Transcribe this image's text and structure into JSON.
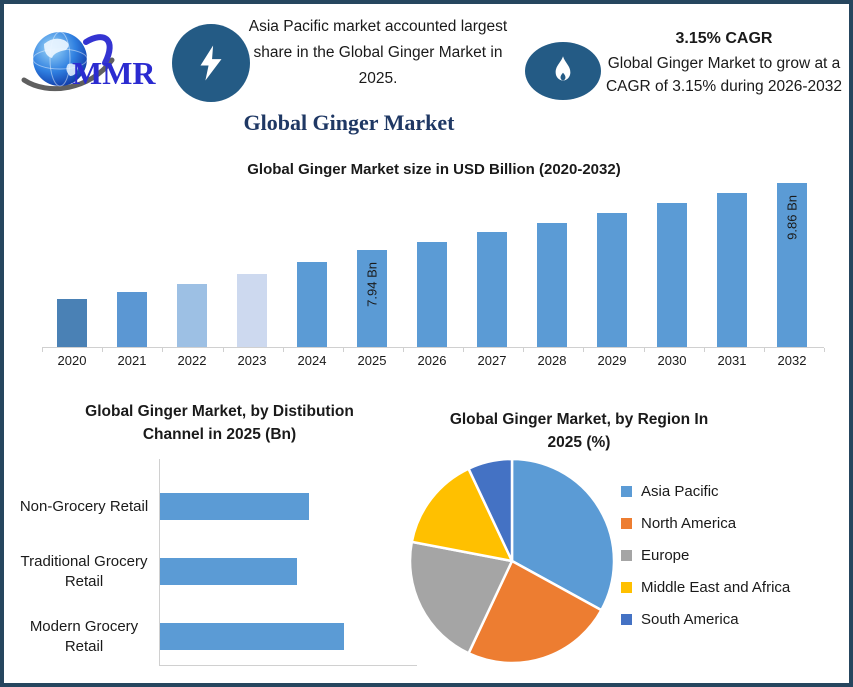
{
  "page": {
    "border_color": "#26465f",
    "background": "#ffffff"
  },
  "brand": {
    "logo_text": "MMR"
  },
  "callouts": {
    "market_share": {
      "icon": "lightning-bolt",
      "icon_bg": "#245b85",
      "text": "Asia Pacific market accounted largest share in the Global Ginger Market in 2025."
    },
    "cagr": {
      "icon": "flame",
      "icon_bg": "#245b85",
      "heading": "3.15% CAGR",
      "text": "Global Ginger Market to grow at a CAGR of 3.15% during 2026-2032"
    }
  },
  "main_title": {
    "text": "Global Ginger Market",
    "color": "#1f3864"
  },
  "chart_data": [
    {
      "type": "bar",
      "title": "Global Ginger Market size in USD Billion (2020-2032)",
      "categories": [
        "2020",
        "2021",
        "2022",
        "2023",
        "2024",
        "2025",
        "2026",
        "2027",
        "2028",
        "2029",
        "2030",
        "2031",
        "2032"
      ],
      "values": [
        6.55,
        6.76,
        6.98,
        7.26,
        7.6,
        7.94,
        8.19,
        8.45,
        8.71,
        8.99,
        9.27,
        9.56,
        9.86
      ],
      "point_labels": [
        null,
        null,
        null,
        null,
        null,
        "7.94 Bn",
        null,
        null,
        null,
        null,
        null,
        null,
        "9.86 Bn"
      ],
      "unit": "USD Billion",
      "xlabel": "",
      "ylabel": "",
      "ylim": [
        5.2,
        10.3
      ],
      "grid": false,
      "bar_colors": [
        "#4a81b5",
        "#5b97d3",
        "#9dc0e4",
        "#cdd9ef",
        "#5b9bd5",
        "#5b9bd5",
        "#5b9bd5",
        "#5b9bd5",
        "#5b9bd5",
        "#5b9bd5",
        "#5b9bd5",
        "#5b9bd5",
        "#5b9bd5"
      ]
    },
    {
      "type": "bar",
      "orientation": "horizontal",
      "title": "Global Ginger Market, by Distibution Channel  in 2025 (Bn)",
      "title_lines": [
        "Global Ginger Market, by Distibution",
        "Channel  in 2025 (Bn)"
      ],
      "categories": [
        "Non-Grocery Retail",
        "Traditional Grocery Retail",
        "Modern Grocery Retail"
      ],
      "values": [
        2.5,
        2.3,
        3.1
      ],
      "xlim": [
        0,
        3.5
      ],
      "grid": false,
      "color": "#5b9bd5"
    },
    {
      "type": "pie",
      "title": "Global Ginger Market, by Region In 2025 (%)",
      "title_lines": [
        "Global Ginger Market, by Region In",
        "2025 (%)"
      ],
      "labels": [
        "Asia Pacific",
        "North America",
        "Europe",
        "Middle East and Africa",
        "South America"
      ],
      "values": [
        33,
        24,
        21,
        15,
        7
      ],
      "colors": [
        "#5b9bd5",
        "#ed7d31",
        "#a5a5a5",
        "#ffc000",
        "#4472c4"
      ],
      "legend_position": "right"
    }
  ]
}
